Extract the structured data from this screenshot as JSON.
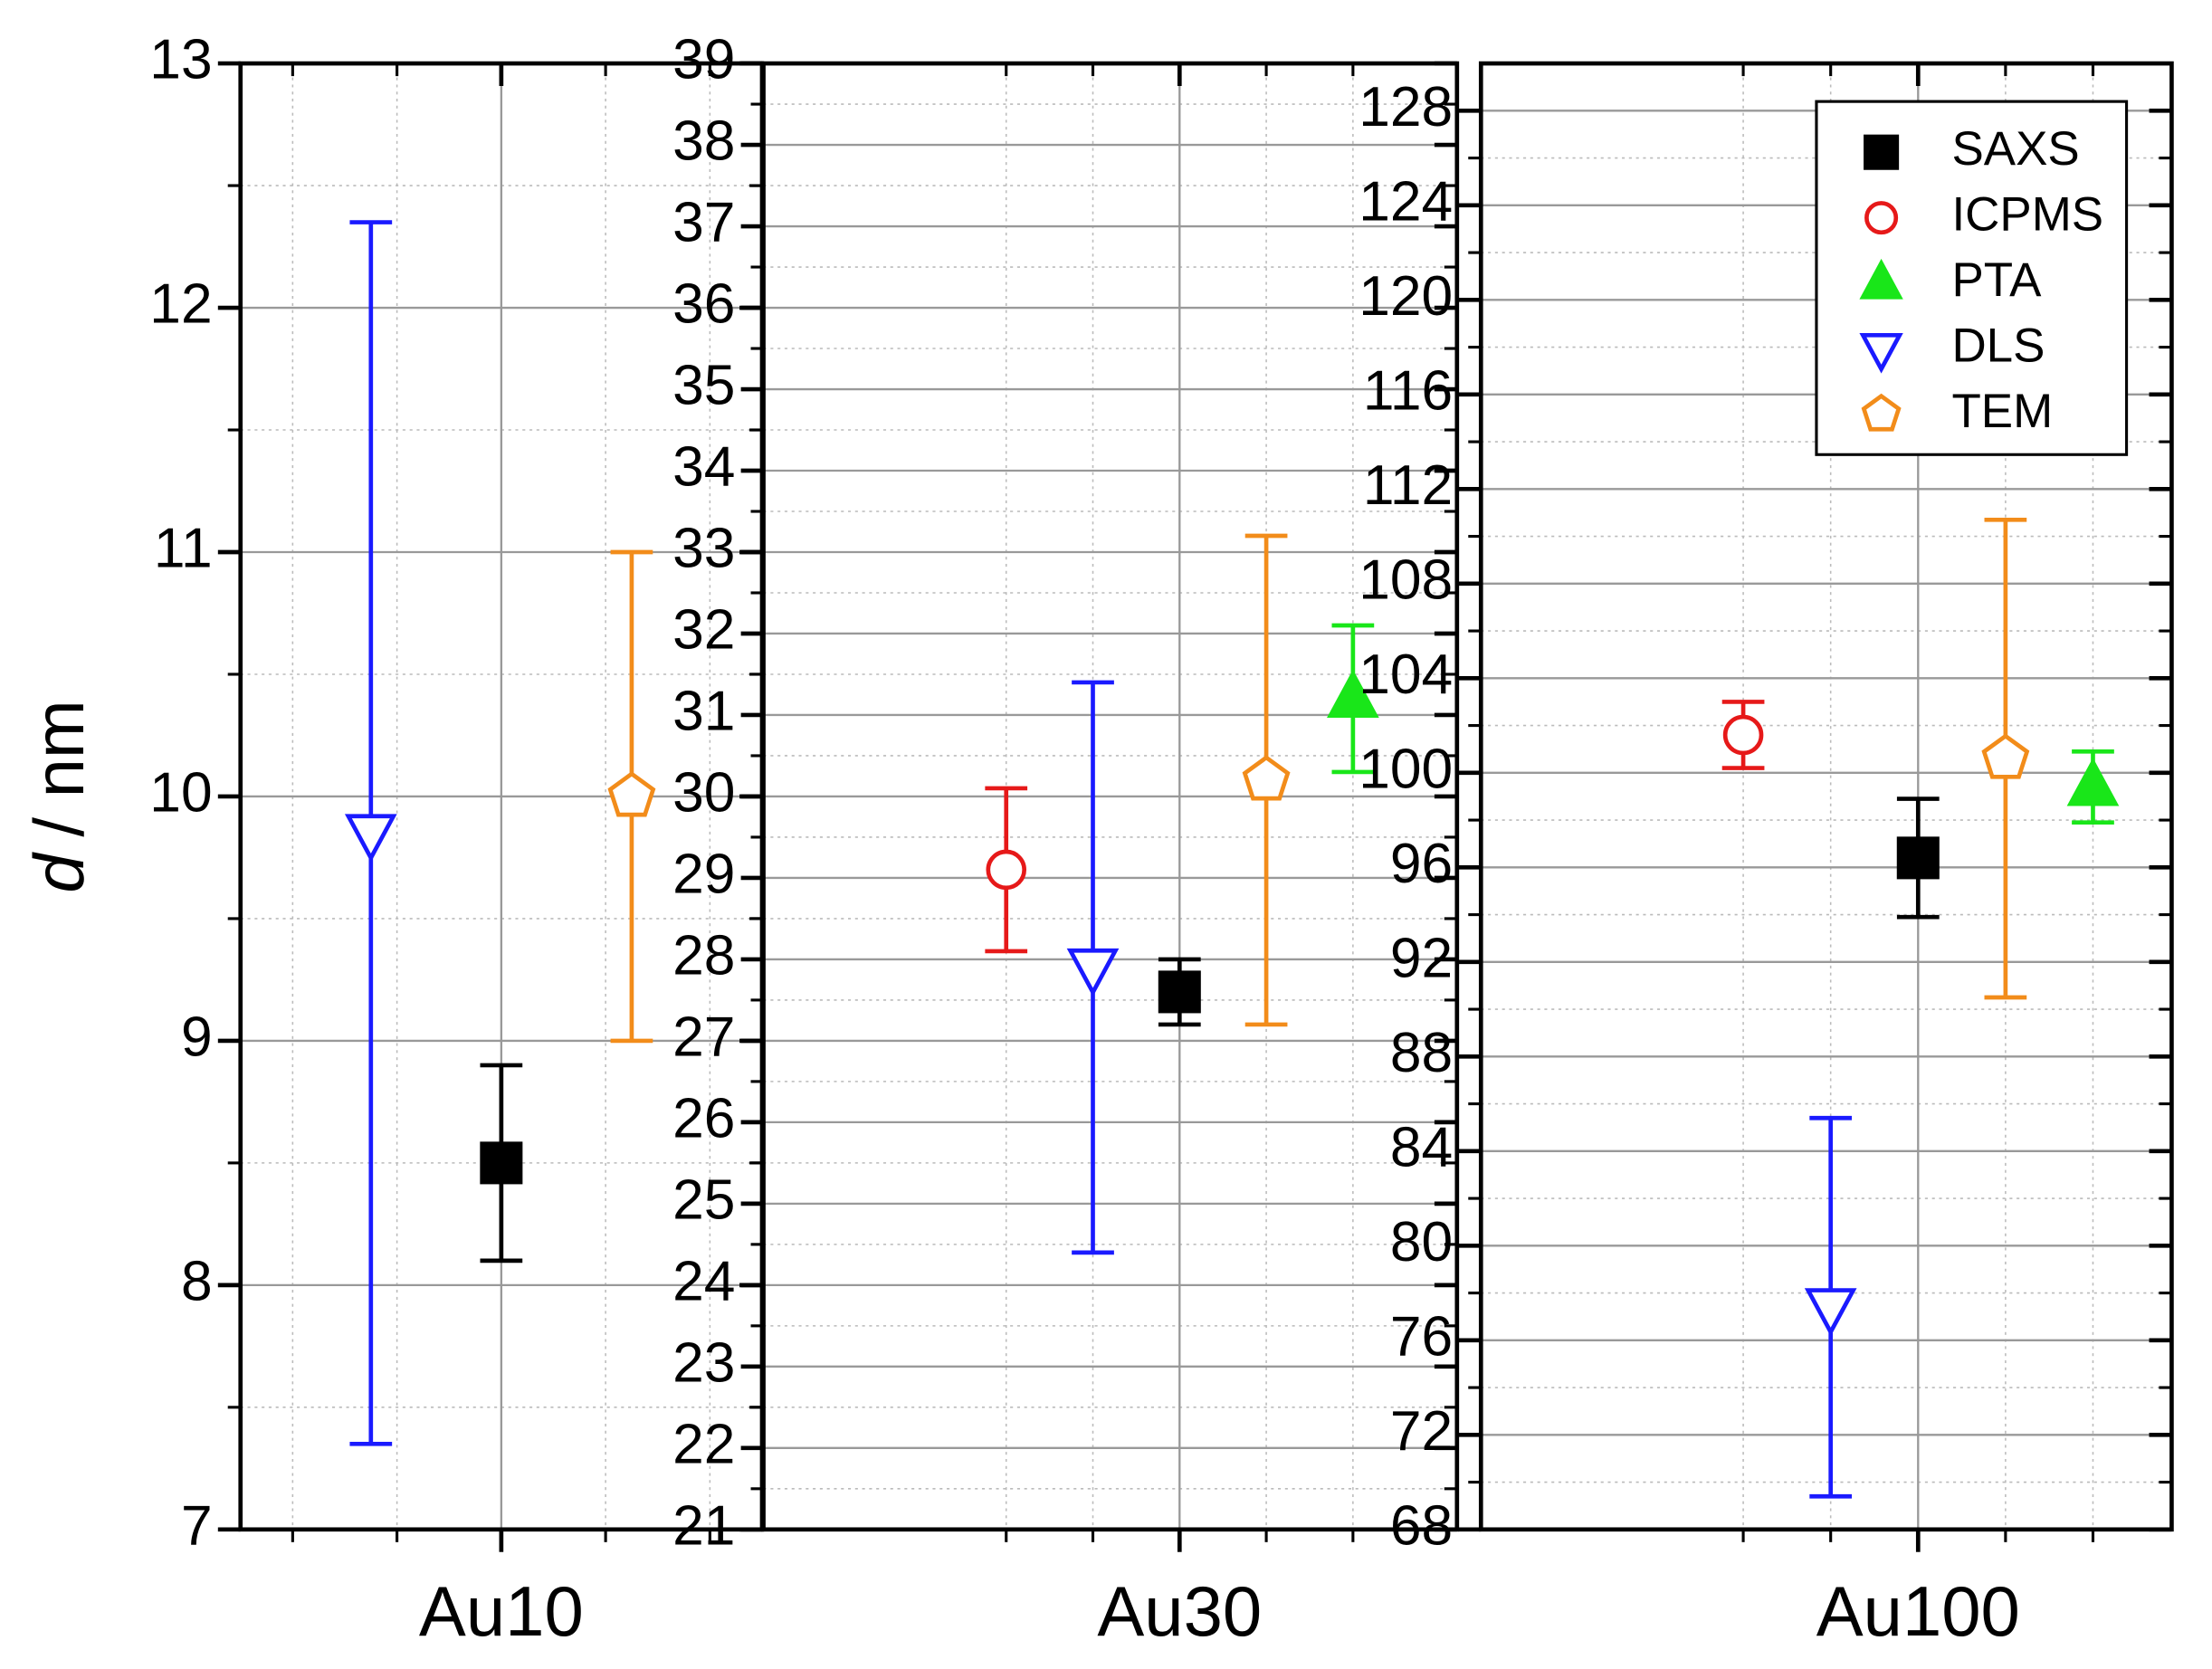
{
  "chart_data": [
    {
      "type": "scatter",
      "ylabel": {
        "symbol": "d",
        "unit": "/ nm"
      },
      "xlim": [
        -2.5,
        2.5
      ],
      "xticks": [
        {
          "value": 0,
          "label": "Au10"
        }
      ],
      "xminor": [
        -2,
        -1,
        1,
        2
      ],
      "ylim": [
        7,
        13
      ],
      "yticks": [
        7,
        8,
        9,
        10,
        11,
        12,
        13
      ],
      "yminor": [
        7.5,
        8.5,
        9.5,
        10.5,
        11.5,
        12.5
      ],
      "grid": true,
      "series": [
        {
          "color": "#1a1aff",
          "marker": "triangle-down",
          "filled": false,
          "x": [
            -1.25
          ],
          "values": [
            9.85
          ],
          "errors": [
            2.5
          ]
        },
        {
          "color": "#000000",
          "marker": "square",
          "filled": true,
          "x": [
            0
          ],
          "values": [
            8.5
          ],
          "errors": [
            0.4
          ]
        },
        {
          "color": "#f28c1a",
          "marker": "pentagon",
          "filled": false,
          "x": [
            1.25
          ],
          "values": [
            10
          ],
          "errors": [
            1
          ]
        }
      ]
    },
    {
      "type": "scatter",
      "xlim": [
        -4.8,
        3.2
      ],
      "xticks": [
        {
          "value": 0,
          "label": "Au30"
        }
      ],
      "xminor": [
        -2,
        -1,
        1,
        2
      ],
      "ylim": [
        21,
        39
      ],
      "yticks": [
        21,
        22,
        23,
        24,
        25,
        26,
        27,
        28,
        29,
        30,
        31,
        32,
        33,
        34,
        35,
        36,
        37,
        38,
        39
      ],
      "yminor": [
        21.5,
        22.5,
        23.5,
        24.5,
        25.5,
        26.5,
        27.5,
        28.5,
        29.5,
        30.5,
        31.5,
        32.5,
        33.5,
        34.5,
        35.5,
        36.5,
        37.5,
        38.5
      ],
      "grid": true,
      "series": [
        {
          "color": "#e61919",
          "marker": "circle",
          "filled": false,
          "x": [
            -2
          ],
          "values": [
            29.1
          ],
          "errors": [
            1
          ]
        },
        {
          "color": "#1a1aff",
          "marker": "triangle-down",
          "filled": false,
          "x": [
            -1
          ],
          "values": [
            27.9
          ],
          "errors": [
            3.5
          ]
        },
        {
          "color": "#000000",
          "marker": "square",
          "filled": true,
          "x": [
            0
          ],
          "values": [
            27.6
          ],
          "errors": [
            0.4
          ]
        },
        {
          "color": "#f28c1a",
          "marker": "pentagon",
          "filled": false,
          "x": [
            1
          ],
          "values": [
            30.2
          ],
          "errors": [
            3
          ]
        },
        {
          "color": "#19e619",
          "marker": "triangle-up",
          "filled": true,
          "x": [
            2
          ],
          "values": [
            31.2
          ],
          "errors": [
            0.9
          ]
        }
      ]
    },
    {
      "type": "scatter",
      "xlim": [
        -5,
        2.9
      ],
      "xticks": [
        {
          "value": 0,
          "label": "Au100"
        }
      ],
      "xminor": [
        -2,
        -1,
        1,
        2
      ],
      "ylim": [
        68,
        130
      ],
      "yticks": [
        68,
        72,
        76,
        80,
        84,
        88,
        92,
        96,
        100,
        104,
        108,
        112,
        116,
        120,
        124,
        128
      ],
      "yminor": [
        70,
        74,
        78,
        82,
        86,
        90,
        94,
        98,
        102,
        106,
        110,
        114,
        118,
        122,
        126
      ],
      "grid": true,
      "legend": "upper right",
      "series": [
        {
          "name": "SAXS",
          "color": "#000000",
          "marker": "square",
          "filled": true,
          "x": [
            0
          ],
          "values": [
            96.4
          ],
          "errors": [
            2.5
          ]
        },
        {
          "name": "ICPMS",
          "color": "#e61919",
          "marker": "circle",
          "filled": false,
          "x": [
            -2
          ],
          "values": [
            101.6
          ],
          "errors": [
            1.4
          ]
        },
        {
          "name": "PTA",
          "color": "#19e619",
          "marker": "triangle-up",
          "filled": true,
          "x": [
            2
          ],
          "values": [
            99.4
          ],
          "errors": [
            1.5
          ]
        },
        {
          "name": "DLS",
          "color": "#1a1aff",
          "marker": "triangle-down",
          "filled": false,
          "x": [
            -1
          ],
          "values": [
            77.4
          ],
          "errors": [
            8
          ]
        },
        {
          "name": "TEM",
          "color": "#f28c1a",
          "marker": "pentagon",
          "filled": false,
          "x": [
            1
          ],
          "values": [
            100.6
          ],
          "errors": [
            10.1
          ]
        }
      ]
    }
  ]
}
